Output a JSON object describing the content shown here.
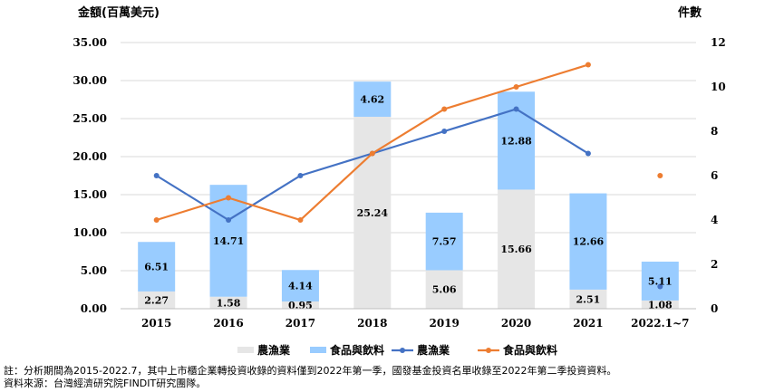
{
  "chart_data": {
    "type": "bar",
    "ylabel_left": "金額(百萬美元)",
    "ylabel_right": "件數",
    "categories": [
      "2015",
      "2016",
      "2017",
      "2018",
      "2019",
      "2020",
      "2021",
      "2022.1~7"
    ],
    "ylim_left": [
      0,
      35
    ],
    "yticks_left": [
      "0.00",
      "5.00",
      "10.00",
      "15.00",
      "20.00",
      "25.00",
      "30.00",
      "35.00"
    ],
    "ylim_right": [
      0,
      12
    ],
    "yticks_right": [
      "0",
      "2",
      "4",
      "6",
      "8",
      "10",
      "12"
    ],
    "series": [
      {
        "name": "農漁業",
        "kind": "bar",
        "axis": "left",
        "color": "#e6e6e6",
        "values": [
          2.27,
          1.58,
          0.95,
          25.24,
          5.06,
          15.66,
          2.51,
          1.08
        ],
        "labels": [
          "2.27",
          "1.58",
          "0.95",
          "25.24",
          "5.06",
          "15.66",
          "2.51",
          "1.08"
        ]
      },
      {
        "name": "食品與飲料",
        "kind": "bar",
        "axis": "left",
        "color": "#99ccff",
        "values": [
          6.51,
          14.71,
          4.14,
          4.62,
          7.57,
          12.88,
          12.66,
          5.11
        ],
        "labels": [
          "6.51",
          "14.71",
          "4.14",
          "4.62",
          "7.57",
          "12.88",
          "12.66",
          "5.11"
        ]
      },
      {
        "name": "農漁業",
        "kind": "line",
        "axis": "right",
        "color": "#4472c4",
        "values": [
          6,
          4,
          6,
          7,
          8,
          9,
          7,
          1
        ]
      },
      {
        "name": "食品與飲料",
        "kind": "line",
        "axis": "right",
        "color": "#ed7d31",
        "values": [
          4,
          5,
          4,
          7,
          9,
          10,
          11,
          6
        ]
      }
    ],
    "legend_position": "bottom",
    "grid": "horizontal"
  },
  "notes": {
    "line1": "註：分析期間為2015-2022.7，其中上市櫃企業轉投資收錄的資料僅到2022年第一季，國發基金投資名單收錄至2022年第二季投資資料。",
    "line2": "資料來源：台灣經濟研究院FINDIT研究團隊。"
  }
}
